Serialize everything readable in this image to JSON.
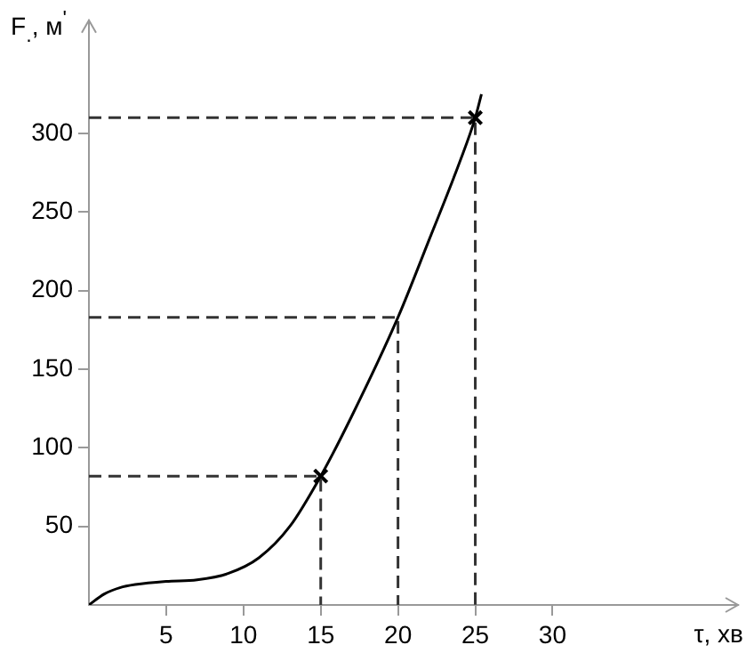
{
  "chart_data": {
    "type": "line",
    "xlabel": "τ, хв",
    "ylabel": "F$_{.}$, м$^{'}$",
    "xlim": [
      0,
      42
    ],
    "ylim": [
      0,
      372
    ],
    "xticks": [
      5,
      10,
      15,
      20,
      25,
      30
    ],
    "yticks": [
      50,
      100,
      150,
      200,
      250,
      300
    ],
    "grid": false,
    "legend": false,
    "series": [
      {
        "color": "#000000",
        "marker": "none",
        "line_style": "solid",
        "x": [
          0,
          1,
          2,
          3,
          5,
          7,
          9,
          11,
          13,
          15,
          17,
          20,
          22,
          24,
          25,
          25.4
        ],
        "values": [
          0,
          7,
          11,
          13,
          15,
          16,
          20,
          30,
          50,
          82,
          120,
          183,
          232,
          282,
          310,
          325
        ]
      },
      {
        "type": "line",
        "color": "#333333",
        "marker": "none",
        "line_style": "dashed",
        "x": [
          0,
          15,
          15
        ],
        "values": [
          82,
          82,
          0
        ]
      },
      {
        "type": "line",
        "color": "#333333",
        "marker": "none",
        "line_style": "dashed",
        "x": [
          0,
          20,
          20
        ],
        "values": [
          183,
          183,
          0
        ]
      },
      {
        "type": "line",
        "color": "#333333",
        "marker": "none",
        "line_style": "dashed",
        "x": [
          0,
          25,
          25
        ],
        "values": [
          310,
          310,
          0
        ]
      },
      {
        "type": "scatter",
        "color": "#000000",
        "marker": "cross",
        "x": [
          15,
          25
        ],
        "values": [
          82,
          310
        ]
      }
    ]
  }
}
